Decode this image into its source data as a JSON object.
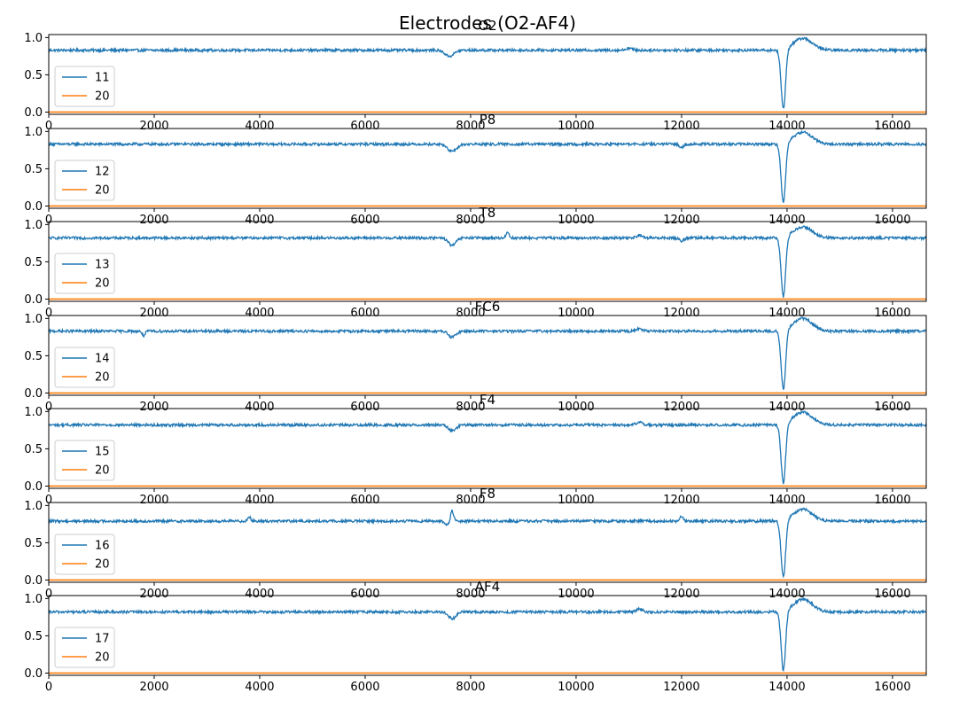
{
  "figure": {
    "suptitle": "Electrodes (O2-AF4)"
  },
  "colors": {
    "series_primary": "#1f77b4",
    "series_reference": "#ff7f0e"
  },
  "chart_data": [
    {
      "type": "line",
      "title": "O2",
      "xlim": [
        0,
        16640
      ],
      "ylim": [
        -0.03,
        1.04
      ],
      "xticks": [
        0,
        2000,
        4000,
        6000,
        8000,
        10000,
        12000,
        14000,
        16000
      ],
      "yticks": [
        0.0,
        0.5,
        1.0
      ],
      "legend_position": "lower-left",
      "series": [
        {
          "name": "11",
          "color": "#1f77b4",
          "baseline": 0.83,
          "features": [
            [
              7600,
              -0.08,
              120
            ],
            [
              11000,
              0.03,
              80
            ],
            [
              13930,
              -0.8,
              60
            ],
            [
              14300,
              0.16,
              250
            ]
          ]
        },
        {
          "name": "20",
          "color": "#ff7f0e",
          "constant": 0.0
        }
      ]
    },
    {
      "type": "line",
      "title": "P8",
      "xlim": [
        0,
        16640
      ],
      "ylim": [
        -0.03,
        1.04
      ],
      "xticks": [
        0,
        2000,
        4000,
        6000,
        8000,
        10000,
        12000,
        14000,
        16000
      ],
      "yticks": [
        0.0,
        0.5,
        1.0
      ],
      "legend_position": "lower-left",
      "series": [
        {
          "name": "12",
          "color": "#1f77b4",
          "baseline": 0.83,
          "features": [
            [
              7650,
              -0.1,
              120
            ],
            [
              12000,
              -0.04,
              60
            ],
            [
              13930,
              -0.8,
              60
            ],
            [
              14300,
              0.16,
              250
            ]
          ]
        },
        {
          "name": "20",
          "color": "#ff7f0e",
          "constant": 0.0
        }
      ]
    },
    {
      "type": "line",
      "title": "T8",
      "xlim": [
        0,
        16640
      ],
      "ylim": [
        -0.03,
        1.04
      ],
      "xticks": [
        0,
        2000,
        4000,
        6000,
        8000,
        10000,
        12000,
        14000,
        16000
      ],
      "yticks": [
        0.0,
        0.5,
        1.0
      ],
      "legend_position": "lower-left",
      "series": [
        {
          "name": "13",
          "color": "#1f77b4",
          "baseline": 0.82,
          "features": [
            [
              7650,
              -0.1,
              100
            ],
            [
              8700,
              0.08,
              40
            ],
            [
              11200,
              0.03,
              80
            ],
            [
              12000,
              -0.04,
              60
            ],
            [
              13930,
              -0.8,
              60
            ],
            [
              14300,
              0.15,
              250
            ]
          ]
        },
        {
          "name": "20",
          "color": "#ff7f0e",
          "constant": 0.0
        }
      ]
    },
    {
      "type": "line",
      "title": "FC6",
      "xlim": [
        0,
        16640
      ],
      "ylim": [
        -0.03,
        1.04
      ],
      "xticks": [
        0,
        2000,
        4000,
        6000,
        8000,
        10000,
        12000,
        14000,
        16000
      ],
      "yticks": [
        0.0,
        0.5,
        1.0
      ],
      "legend_position": "lower-left",
      "series": [
        {
          "name": "14",
          "color": "#1f77b4",
          "baseline": 0.83,
          "features": [
            [
              1800,
              -0.06,
              40
            ],
            [
              7650,
              -0.08,
              100
            ],
            [
              11200,
              0.03,
              80
            ],
            [
              13930,
              -0.8,
              60
            ],
            [
              14300,
              0.17,
              250
            ]
          ]
        },
        {
          "name": "20",
          "color": "#ff7f0e",
          "constant": 0.0
        }
      ]
    },
    {
      "type": "line",
      "title": "F4",
      "xlim": [
        0,
        16640
      ],
      "ylim": [
        -0.03,
        1.04
      ],
      "xticks": [
        0,
        2000,
        4000,
        6000,
        8000,
        10000,
        12000,
        14000,
        16000
      ],
      "yticks": [
        0.0,
        0.5,
        1.0
      ],
      "legend_position": "lower-left",
      "series": [
        {
          "name": "15",
          "color": "#1f77b4",
          "baseline": 0.82,
          "features": [
            [
              7650,
              -0.08,
              100
            ],
            [
              11200,
              0.04,
              80
            ],
            [
              13930,
              -0.8,
              60
            ],
            [
              14300,
              0.17,
              250
            ]
          ]
        },
        {
          "name": "20",
          "color": "#ff7f0e",
          "constant": 0.0
        }
      ]
    },
    {
      "type": "line",
      "title": "F8",
      "xlim": [
        0,
        16640
      ],
      "ylim": [
        -0.03,
        1.04
      ],
      "xticks": [
        0,
        2000,
        4000,
        6000,
        8000,
        10000,
        12000,
        14000,
        16000
      ],
      "yticks": [
        0.0,
        0.5,
        1.0
      ],
      "legend_position": "lower-left",
      "series": [
        {
          "name": "16",
          "color": "#1f77b4",
          "baseline": 0.79,
          "features": [
            [
              3800,
              0.06,
              40
            ],
            [
              7550,
              -0.05,
              60
            ],
            [
              7650,
              0.14,
              40
            ],
            [
              12000,
              0.07,
              40
            ],
            [
              13930,
              -0.77,
              60
            ],
            [
              14300,
              0.16,
              250
            ]
          ]
        },
        {
          "name": "20",
          "color": "#ff7f0e",
          "constant": 0.0
        }
      ]
    },
    {
      "type": "line",
      "title": "AF4",
      "xlim": [
        0,
        16640
      ],
      "ylim": [
        -0.03,
        1.04
      ],
      "xticks": [
        0,
        2000,
        4000,
        6000,
        8000,
        10000,
        12000,
        14000,
        16000
      ],
      "yticks": [
        0.0,
        0.5,
        1.0
      ],
      "legend_position": "lower-left",
      "series": [
        {
          "name": "17",
          "color": "#1f77b4",
          "baseline": 0.82,
          "features": [
            [
              7650,
              -0.09,
              100
            ],
            [
              11200,
              0.04,
              80
            ],
            [
              13930,
              -0.8,
              60
            ],
            [
              14300,
              0.17,
              250
            ]
          ]
        },
        {
          "name": "20",
          "color": "#ff7f0e",
          "constant": 0.0
        }
      ]
    }
  ]
}
